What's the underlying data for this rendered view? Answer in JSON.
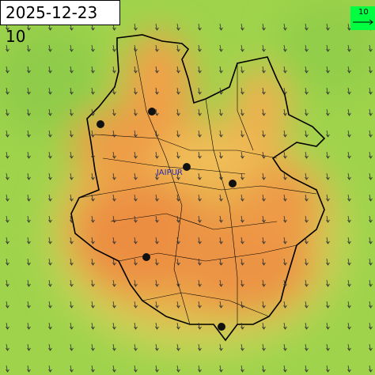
{
  "timestamp": "2025-12-23 10",
  "wind_legend": {
    "label": "10"
  },
  "city": {
    "label": "JAIPUR"
  }
}
